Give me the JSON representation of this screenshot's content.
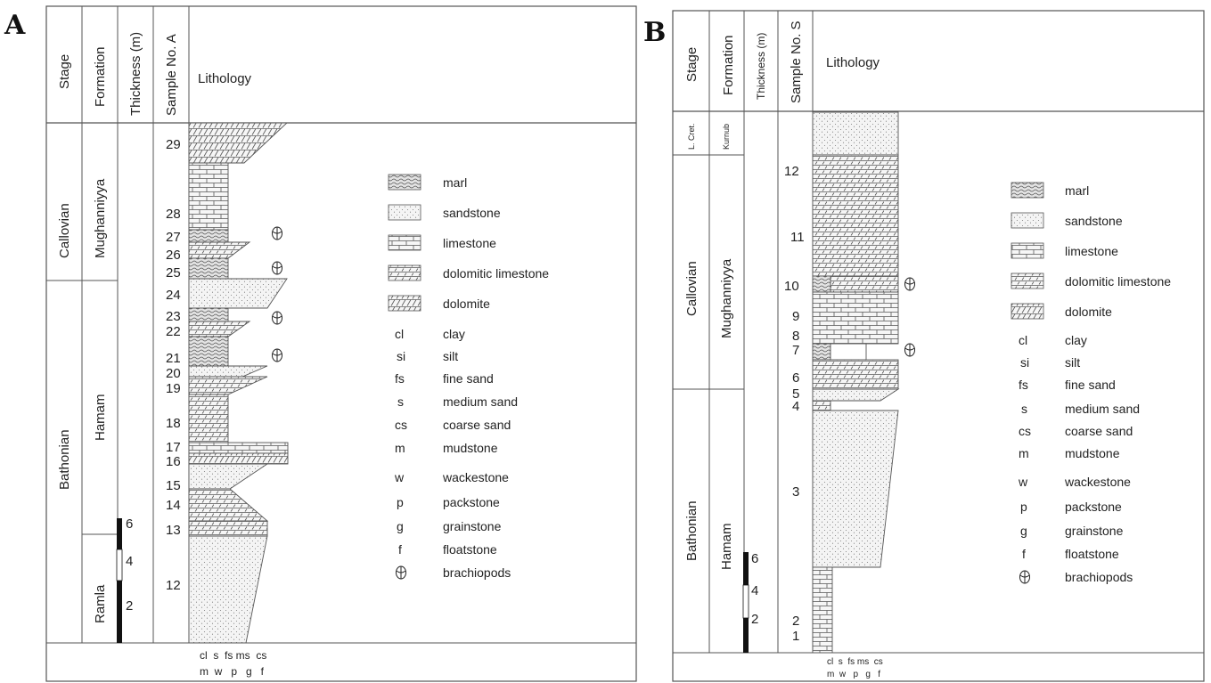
{
  "panel_a": {
    "label": "A",
    "headers": [
      "Stage",
      "Formation",
      "Thickness (m)",
      "Sample No. A",
      "Lithology"
    ],
    "stages": [
      "Callovian",
      "Bathonian"
    ],
    "formations": [
      "Mughanniyya",
      "Hamam",
      "Ramla"
    ],
    "thickness_ticks": [
      "6",
      "4",
      "2"
    ],
    "samples": [
      "29",
      "28",
      "27",
      "26",
      "25",
      "24",
      "23",
      "22",
      "21",
      "20",
      "19",
      "18",
      "17",
      "16",
      "15",
      "14",
      "13",
      "12"
    ],
    "grain_row1": "cl  s  fs ms  cs",
    "grain_row2": "m  w   p   g   f"
  },
  "panel_b": {
    "label": "B",
    "headers": [
      "Stage",
      "Formation",
      "Thickness (m)",
      "Sample No. S",
      "Lithology"
    ],
    "stages": [
      "L. Cret.",
      "Callovian",
      "Bathonian"
    ],
    "formations": [
      "Kurnub",
      "Mughanniyya",
      "Hamam"
    ],
    "thickness_ticks": [
      "6",
      "4",
      "2"
    ],
    "samples": [
      "12",
      "11",
      "10",
      "9",
      "8",
      "7",
      "6",
      "5",
      "4",
      "3",
      "2",
      "1"
    ],
    "grain_row1": "cl  s  fs ms  cs",
    "grain_row2": "m  w   p   g   f"
  },
  "legend": {
    "lithologies": [
      "marl",
      "sandstone",
      "limestone",
      "dolomitic limestone",
      "dolomite"
    ],
    "abbreviations": [
      {
        "abbr": "cl",
        "term": "clay"
      },
      {
        "abbr": "si",
        "term": "silt"
      },
      {
        "abbr": "fs",
        "term": "fine sand"
      },
      {
        "abbr": "s",
        "term": "medium sand"
      },
      {
        "abbr": "cs",
        "term": "coarse sand"
      },
      {
        "abbr": "m",
        "term": "mudstone"
      },
      {
        "abbr": "w",
        "term": "wackestone"
      },
      {
        "abbr": "p",
        "term": "packstone"
      },
      {
        "abbr": "g",
        "term": "grainstone"
      },
      {
        "abbr": "f",
        "term": "floatstone"
      }
    ],
    "fossil": "brachiopods",
    "fossil_icon": "brachiopod-icon"
  }
}
